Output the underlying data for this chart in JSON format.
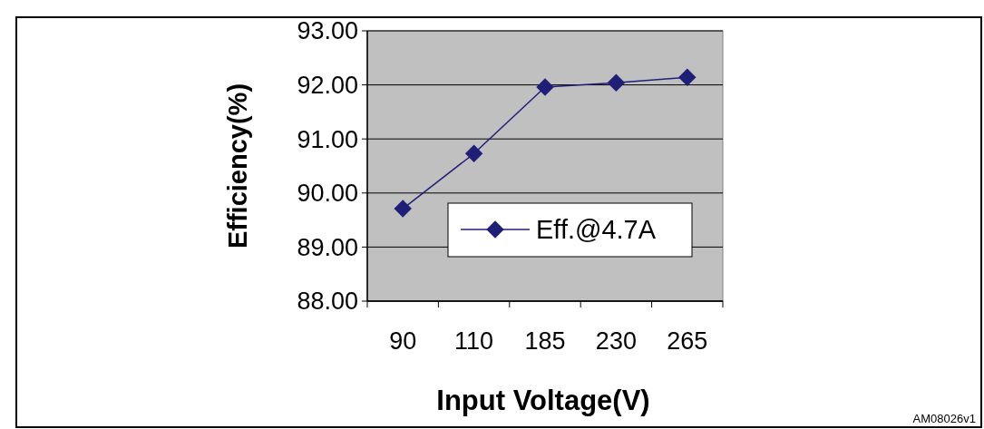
{
  "chart_data": {
    "type": "line",
    "xlabel": "Input Voltage(V)",
    "ylabel": "Efficiency(%)",
    "categories": [
      "90",
      "110",
      "185",
      "230",
      "265"
    ],
    "series": [
      {
        "name": "Eff.@4.7A",
        "color": "#1f1f78",
        "values": [
          89.71,
          90.73,
          91.96,
          92.04,
          92.14
        ]
      }
    ],
    "ylim": [
      88,
      93
    ],
    "yticks": [
      {
        "value": 88,
        "label": "88.00"
      },
      {
        "value": 89,
        "label": "89.00"
      },
      {
        "value": 90,
        "label": "90.00"
      },
      {
        "value": 91,
        "label": "91.00"
      },
      {
        "value": 92,
        "label": "92.00"
      },
      {
        "value": 93,
        "label": "93.00"
      }
    ],
    "grid": "y",
    "legend": "right",
    "marker": "diamond",
    "line_style": "solid",
    "annotations": [
      "AM08026v1"
    ]
  }
}
